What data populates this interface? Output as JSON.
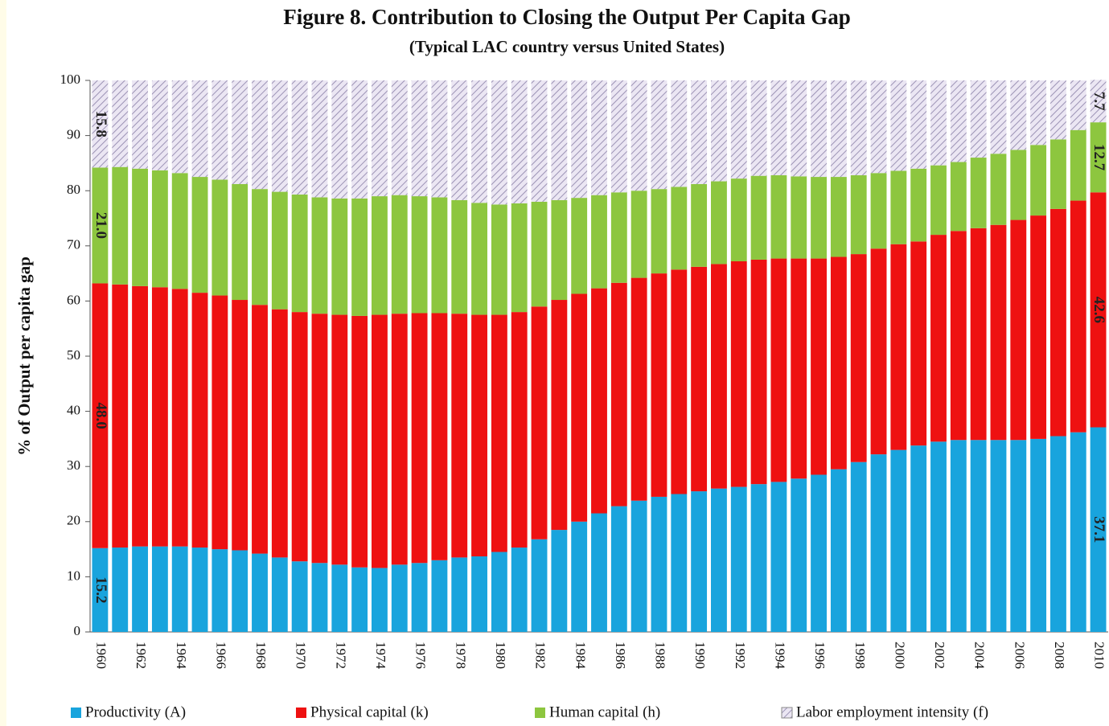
{
  "chart_data": {
    "type": "stacked-bar",
    "title": "Figure 8. Contribution to Closing the Output Per Capita Gap",
    "subtitle": "(Typical LAC country versus United States)",
    "y_label": "% of Output per capita gap",
    "categories": [
      "1960",
      null,
      "1962",
      null,
      "1964",
      null,
      "1966",
      null,
      "1968",
      null,
      "1970",
      null,
      "1972",
      null,
      "1974",
      null,
      "1976",
      null,
      "1978",
      null,
      "1980",
      null,
      "1982",
      null,
      "1984",
      null,
      "1986",
      null,
      "1988",
      null,
      "1990",
      null,
      "1992",
      null,
      "1994",
      null,
      "1996",
      null,
      "1998",
      null,
      "2000",
      null,
      "2002",
      null,
      "2004",
      null,
      "2006",
      null,
      "2008",
      null,
      "2010"
    ],
    "ylim": [
      0,
      100
    ],
    "yticks": [
      0,
      10,
      20,
      30,
      40,
      50,
      60,
      70,
      80,
      90,
      100
    ],
    "series": [
      {
        "name": "Productivity (A)",
        "color": "#19a4dd",
        "values": [
          15.2,
          15.3,
          15.5,
          15.5,
          15.5,
          15.3,
          15.0,
          14.8,
          14.2,
          13.5,
          12.8,
          12.5,
          12.2,
          11.7,
          11.6,
          12.2,
          12.5,
          13.0,
          13.5,
          13.7,
          14.5,
          15.3,
          16.8,
          18.5,
          20.0,
          21.5,
          22.8,
          23.8,
          24.5,
          25.0,
          25.5,
          26.0,
          26.3,
          26.8,
          27.2,
          27.8,
          28.5,
          29.5,
          30.8,
          32.2,
          33.0,
          33.8,
          34.5,
          34.8,
          34.8,
          34.8,
          34.8,
          35.0,
          35.5,
          36.2,
          37.1
        ],
        "value_labels": [
          "15.2",
          null,
          null,
          null,
          null,
          null,
          null,
          null,
          null,
          null,
          null,
          null,
          null,
          null,
          null,
          null,
          null,
          null,
          null,
          null,
          null,
          null,
          null,
          null,
          null,
          null,
          null,
          null,
          null,
          null,
          null,
          null,
          null,
          null,
          null,
          null,
          null,
          null,
          null,
          null,
          null,
          null,
          null,
          null,
          null,
          null,
          null,
          null,
          null,
          null,
          "37.1"
        ]
      },
      {
        "name": "Physical capital (k)",
        "color": "#ee1111",
        "values": [
          48.0,
          47.7,
          47.2,
          47.0,
          46.7,
          46.2,
          46.0,
          45.4,
          45.1,
          45.0,
          45.2,
          45.2,
          45.3,
          45.6,
          45.9,
          45.5,
          45.3,
          44.8,
          44.2,
          43.8,
          43.0,
          42.7,
          42.2,
          41.7,
          41.3,
          40.8,
          40.5,
          40.4,
          40.5,
          40.7,
          40.7,
          40.7,
          40.9,
          40.7,
          40.5,
          39.9,
          39.2,
          38.5,
          37.7,
          37.3,
          37.3,
          37.0,
          37.5,
          37.9,
          38.4,
          39.0,
          39.9,
          40.5,
          41.2,
          42.0,
          42.6
        ],
        "value_labels": [
          "48.0",
          null,
          null,
          null,
          null,
          null,
          null,
          null,
          null,
          null,
          null,
          null,
          null,
          null,
          null,
          null,
          null,
          null,
          null,
          null,
          null,
          null,
          null,
          null,
          null,
          null,
          null,
          null,
          null,
          null,
          null,
          null,
          null,
          null,
          null,
          null,
          null,
          null,
          null,
          null,
          null,
          null,
          null,
          null,
          null,
          null,
          null,
          null,
          null,
          null,
          "42.6"
        ]
      },
      {
        "name": "Human capital (h)",
        "color": "#8dc63f",
        "values": [
          21.0,
          21.3,
          21.3,
          21.2,
          21.0,
          21.0,
          21.0,
          21.0,
          21.0,
          21.3,
          21.3,
          21.1,
          21.1,
          21.3,
          21.5,
          21.5,
          21.2,
          21.0,
          20.6,
          20.3,
          20.0,
          19.7,
          19.0,
          18.1,
          17.4,
          16.9,
          16.4,
          15.8,
          15.3,
          15.0,
          15.0,
          15.0,
          15.0,
          15.2,
          15.1,
          14.9,
          14.8,
          14.5,
          14.3,
          13.7,
          13.3,
          13.2,
          12.6,
          12.5,
          12.8,
          12.9,
          12.7,
          12.8,
          12.6,
          12.8,
          12.7
        ],
        "value_labels": [
          "21.0",
          null,
          null,
          null,
          null,
          null,
          null,
          null,
          null,
          null,
          null,
          null,
          null,
          null,
          null,
          null,
          null,
          null,
          null,
          null,
          null,
          null,
          null,
          null,
          null,
          null,
          null,
          null,
          null,
          null,
          null,
          null,
          null,
          null,
          null,
          null,
          null,
          null,
          null,
          null,
          null,
          null,
          null,
          null,
          null,
          null,
          null,
          null,
          null,
          null,
          "12.7"
        ]
      },
      {
        "name": "Labor employment intensity (f)",
        "color": "#d9d2ea",
        "pattern": "hatch",
        "values": [
          15.8,
          15.7,
          16.0,
          16.3,
          16.8,
          17.5,
          18.0,
          18.8,
          19.7,
          20.2,
          20.7,
          21.2,
          21.4,
          21.4,
          21.0,
          20.8,
          21.0,
          21.2,
          21.7,
          22.2,
          22.5,
          22.3,
          22.0,
          21.7,
          21.3,
          20.8,
          20.3,
          20.0,
          19.7,
          19.3,
          18.8,
          18.3,
          17.8,
          17.3,
          17.2,
          17.4,
          17.5,
          17.5,
          17.2,
          16.8,
          16.4,
          16.0,
          15.4,
          14.8,
          14.0,
          13.3,
          12.6,
          11.7,
          10.7,
          9.0,
          7.7
        ],
        "value_labels": [
          "15.8",
          null,
          null,
          null,
          null,
          null,
          null,
          null,
          null,
          null,
          null,
          null,
          null,
          null,
          null,
          null,
          null,
          null,
          null,
          null,
          null,
          null,
          null,
          null,
          null,
          null,
          null,
          null,
          null,
          null,
          null,
          null,
          null,
          null,
          null,
          null,
          null,
          null,
          null,
          null,
          null,
          null,
          null,
          null,
          null,
          null,
          null,
          null,
          null,
          null,
          "7.7"
        ]
      }
    ],
    "legend": "bottom"
  }
}
